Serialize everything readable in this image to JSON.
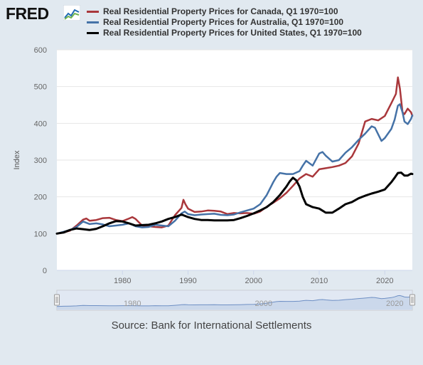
{
  "logo": {
    "text": "FRED"
  },
  "source": "Source: Bank for International Settlements",
  "colors": {
    "canada": "#a9373b",
    "australia": "#4572a7",
    "united_states": "#000000",
    "gridline": "#e6e6e6",
    "navigator_fill": "#c9d6ea",
    "navigator_line": "#6e8fc4"
  },
  "chart_data": {
    "type": "line",
    "ylabel": "Index",
    "xlabel": "",
    "xlim": [
      1970,
      2024.2
    ],
    "ylim": [
      0,
      600
    ],
    "yticks": [
      0,
      100,
      200,
      300,
      400,
      500,
      600
    ],
    "xticks": [
      1980,
      1990,
      2000,
      2010,
      2020
    ],
    "grid": true,
    "legend_position": "top",
    "navigator_labels": [
      "1980",
      "2000",
      "2020"
    ],
    "series": [
      {
        "name": "Real Residential Property Prices for Canada, Q1 1970=100",
        "key": "canada",
        "x": [
          1970,
          1971,
          1972,
          1973,
          1974,
          1974.5,
          1975,
          1976,
          1977,
          1978,
          1979,
          1980,
          1981,
          1981.5,
          1982,
          1983,
          1984,
          1985,
          1986,
          1987,
          1988,
          1989,
          1989.3,
          1989.6,
          1990,
          1991,
          1992,
          1993,
          1994,
          1995,
          1996,
          1997,
          1998,
          1999,
          2000,
          2001,
          2002,
          2003,
          2004,
          2005,
          2006,
          2007,
          2008,
          2009,
          2010,
          2011,
          2012,
          2013,
          2014,
          2015,
          2016,
          2017,
          2018,
          2019,
          2020,
          2021,
          2021.7,
          2022,
          2022.3,
          2022.7,
          2023,
          2023.5,
          2024,
          2024.2
        ],
        "y": [
          100,
          103,
          108,
          122,
          138,
          141,
          135,
          137,
          142,
          143,
          137,
          134,
          141,
          145,
          140,
          122,
          120,
          118,
          117,
          122,
          150,
          170,
          192,
          180,
          168,
          159,
          160,
          163,
          162,
          160,
          153,
          156,
          155,
          156,
          154,
          160,
          173,
          184,
          196,
          211,
          230,
          250,
          262,
          255,
          275,
          278,
          281,
          285,
          292,
          310,
          345,
          405,
          412,
          408,
          420,
          455,
          480,
          525,
          495,
          430,
          425,
          440,
          430,
          420
        ]
      },
      {
        "name": "Real Residential Property Prices for Australia, Q1 1970=100",
        "key": "australia",
        "x": [
          1970,
          1971,
          1972,
          1973,
          1974,
          1975,
          1976,
          1977,
          1978,
          1979,
          1980,
          1981,
          1982,
          1983,
          1984,
          1985,
          1986,
          1987,
          1988,
          1989,
          1989.5,
          1990,
          1991,
          1992,
          1993,
          1994,
          1995,
          1996,
          1997,
          1998,
          1999,
          2000,
          2001,
          2002,
          2003,
          2003.5,
          2004,
          2005,
          2006,
          2007,
          2007.5,
          2008,
          2009,
          2010,
          2010.5,
          2011,
          2012,
          2013,
          2014,
          2015,
          2016,
          2017,
          2018,
          2018.5,
          2019,
          2019.5,
          2020,
          2021,
          2021.5,
          2022,
          2022.3,
          2022.7,
          2023,
          2023.5,
          2024,
          2024.2
        ],
        "y": [
          100,
          105,
          110,
          118,
          133,
          126,
          128,
          125,
          120,
          122,
          124,
          128,
          120,
          117,
          118,
          124,
          122,
          120,
          135,
          155,
          160,
          153,
          150,
          152,
          153,
          154,
          151,
          150,
          152,
          158,
          163,
          168,
          180,
          205,
          240,
          255,
          265,
          262,
          262,
          270,
          285,
          298,
          285,
          318,
          322,
          312,
          296,
          300,
          320,
          335,
          355,
          372,
          392,
          388,
          370,
          352,
          360,
          385,
          410,
          448,
          452,
          430,
          405,
          398,
          412,
          422
        ]
      },
      {
        "name": "Real Residential Property Prices for United States, Q1 1970=100",
        "key": "united_states",
        "x": [
          1970,
          1971,
          1972,
          1973,
          1974,
          1975,
          1976,
          1977,
          1978,
          1979,
          1980,
          1981,
          1982,
          1983,
          1984,
          1985,
          1986,
          1987,
          1988,
          1989,
          1990,
          1991,
          1992,
          1993,
          1994,
          1995,
          1996,
          1997,
          1998,
          1999,
          2000,
          2001,
          2002,
          2003,
          2004,
          2005,
          2005.5,
          2006,
          2006.5,
          2007,
          2007.5,
          2008,
          2009,
          2010,
          2011,
          2012,
          2013,
          2014,
          2015,
          2016,
          2017,
          2018,
          2019,
          2020,
          2021,
          2021.5,
          2022,
          2022.5,
          2023,
          2023.5,
          2024,
          2024.2
        ],
        "y": [
          100,
          103,
          110,
          114,
          112,
          110,
          113,
          120,
          128,
          134,
          133,
          128,
          122,
          123,
          124,
          128,
          133,
          140,
          145,
          152,
          145,
          140,
          137,
          137,
          136,
          136,
          136,
          137,
          142,
          148,
          155,
          163,
          172,
          186,
          205,
          228,
          242,
          252,
          245,
          228,
          200,
          180,
          172,
          168,
          157,
          157,
          168,
          180,
          186,
          196,
          203,
          209,
          214,
          220,
          240,
          252,
          265,
          266,
          258,
          258,
          263,
          262
        ]
      }
    ]
  }
}
